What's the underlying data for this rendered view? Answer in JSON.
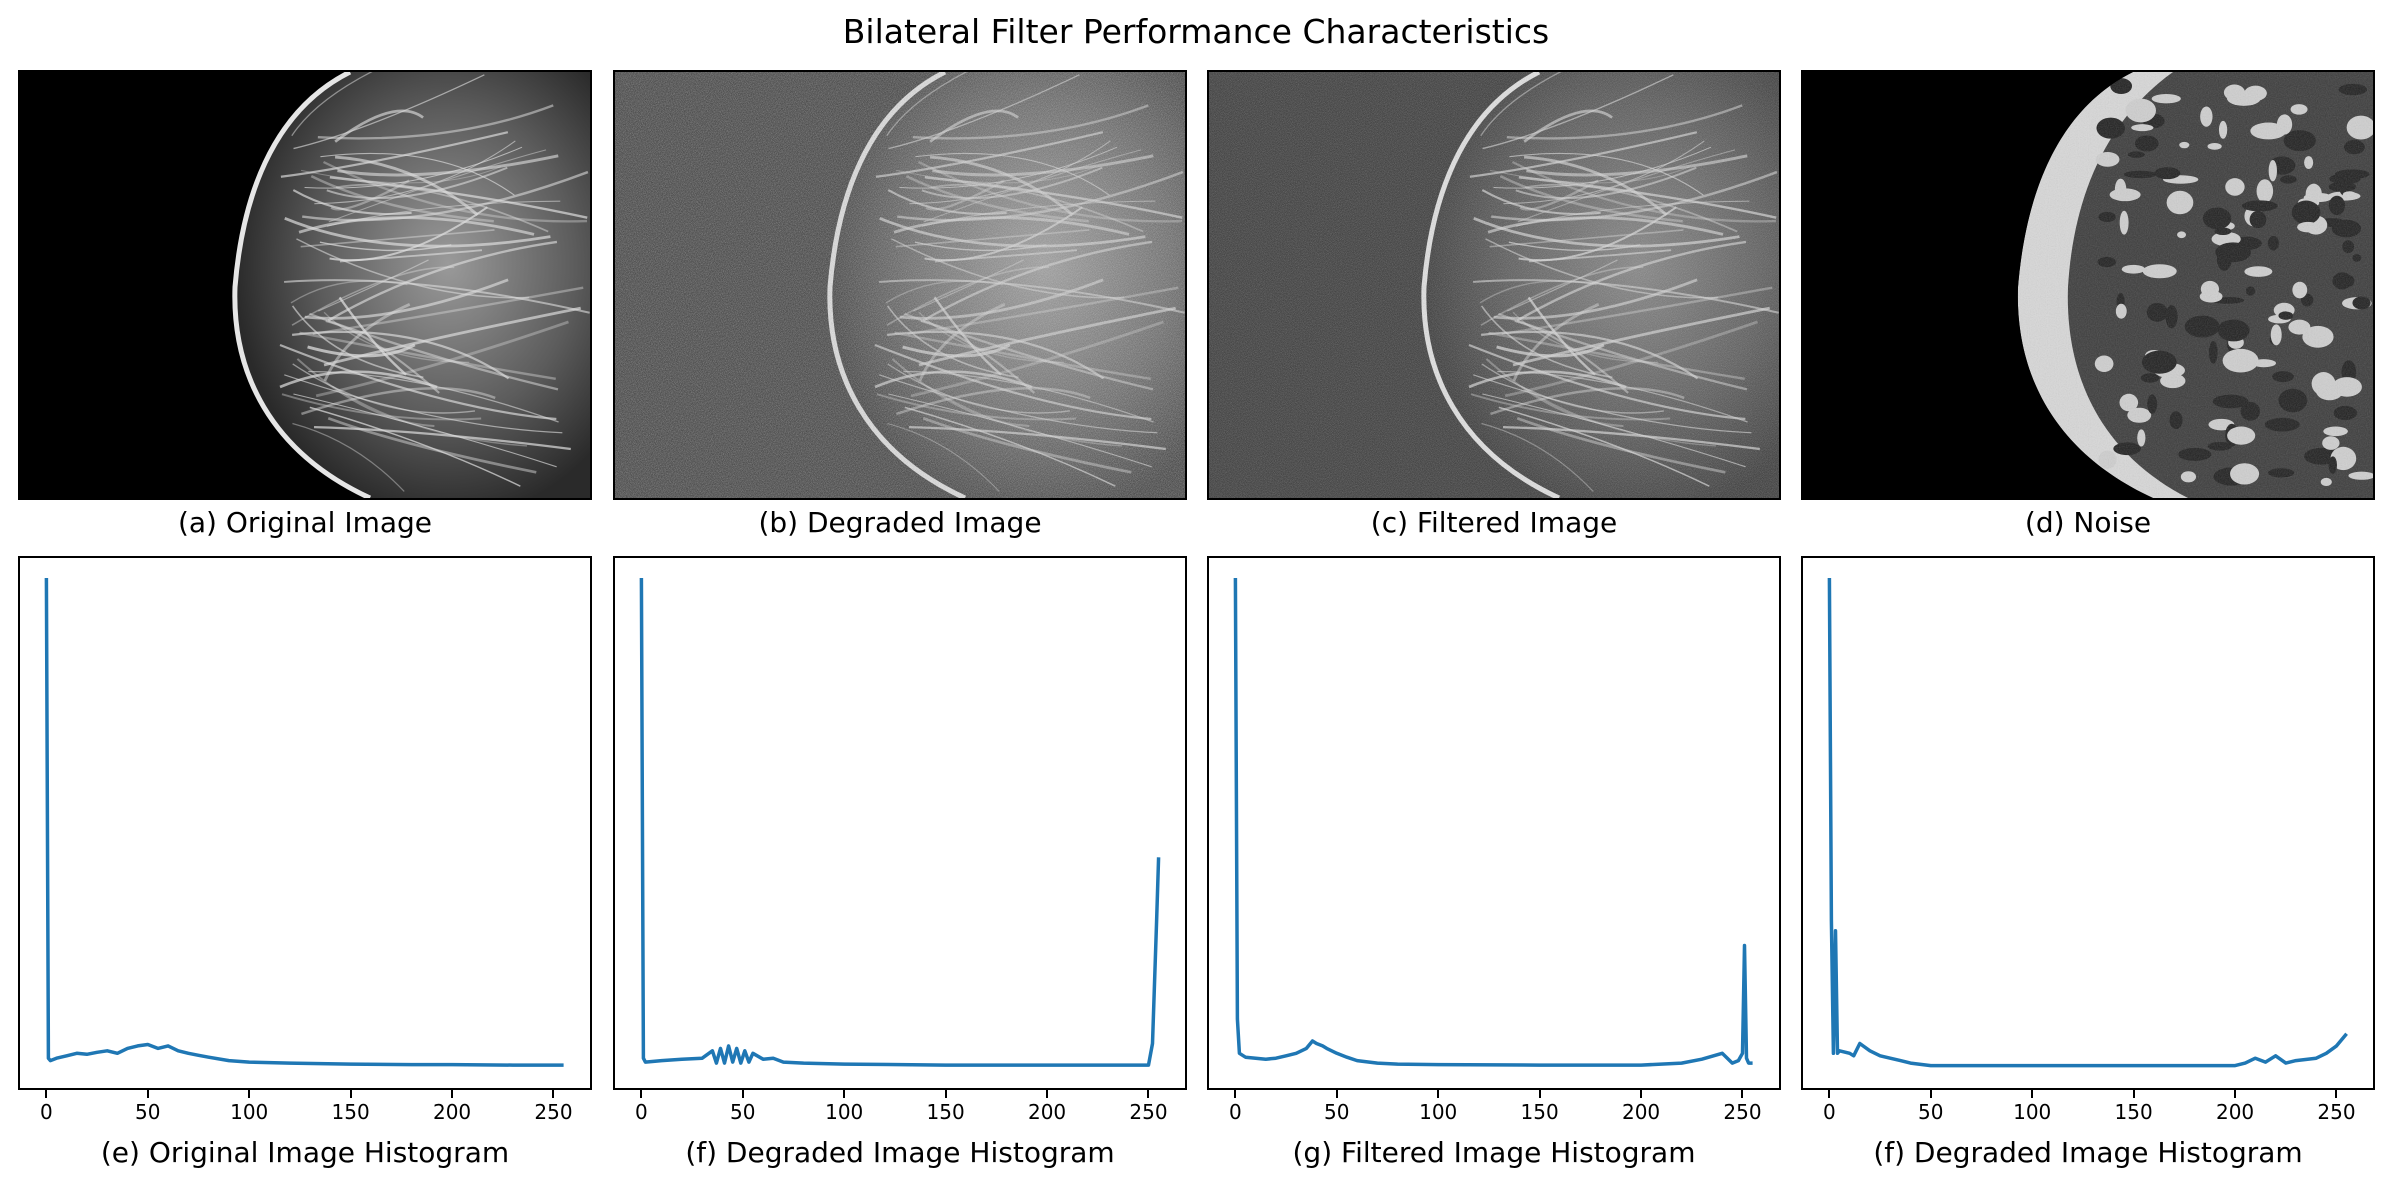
{
  "figure_title": "Bilateral Filter Performance Characteristics",
  "image_panels": [
    {
      "caption": "(a) Original Image",
      "kind": "original"
    },
    {
      "caption": "(b) Degraded Image",
      "kind": "degraded"
    },
    {
      "caption": "(c) Filtered Image",
      "kind": "filtered"
    },
    {
      "caption": "(d) Noise",
      "kind": "noise"
    }
  ],
  "colors": {
    "line": "#1f77b4",
    "axis": "#000000"
  },
  "chart_data": [
    {
      "type": "line",
      "title": "(e) Original Image Histogram",
      "xlabel": "",
      "ylabel": "",
      "xlim": [
        -13,
        268
      ],
      "ylim": [
        0,
        1
      ],
      "xticks": [
        0,
        50,
        100,
        150,
        200,
        250
      ],
      "yticks": [],
      "series": [
        {
          "x": [
            0,
            1,
            2,
            5,
            10,
            15,
            20,
            25,
            30,
            35,
            40,
            45,
            50,
            55,
            60,
            65,
            70,
            75,
            80,
            90,
            100,
            120,
            150,
            180,
            200,
            230,
            255
          ],
          "y": [
            1.0,
            0.02,
            0.015,
            0.02,
            0.025,
            0.03,
            0.028,
            0.032,
            0.035,
            0.03,
            0.04,
            0.045,
            0.048,
            0.04,
            0.045,
            0.035,
            0.03,
            0.026,
            0.022,
            0.015,
            0.012,
            0.01,
            0.008,
            0.007,
            0.007,
            0.006,
            0.006
          ]
        }
      ]
    },
    {
      "type": "line",
      "title": "(f) Degraded Image Histogram",
      "xlabel": "",
      "ylabel": "",
      "xlim": [
        -13,
        268
      ],
      "ylim": [
        0,
        1
      ],
      "xticks": [
        0,
        50,
        100,
        150,
        200,
        250
      ],
      "yticks": [],
      "series": [
        {
          "x": [
            0,
            1,
            2,
            10,
            20,
            30,
            35,
            37,
            39,
            41,
            43,
            45,
            47,
            49,
            51,
            53,
            55,
            60,
            65,
            70,
            80,
            100,
            150,
            200,
            250,
            252,
            254,
            255
          ],
          "y": [
            1.0,
            0.02,
            0.012,
            0.015,
            0.018,
            0.02,
            0.035,
            0.01,
            0.04,
            0.01,
            0.045,
            0.012,
            0.04,
            0.01,
            0.035,
            0.012,
            0.03,
            0.018,
            0.02,
            0.012,
            0.01,
            0.008,
            0.006,
            0.006,
            0.006,
            0.05,
            0.3,
            0.43
          ]
        }
      ]
    },
    {
      "type": "line",
      "title": "(g) Filtered Image Histogram",
      "xlabel": "",
      "ylabel": "",
      "xlim": [
        -13,
        268
      ],
      "ylim": [
        0,
        1
      ],
      "xticks": [
        0,
        50,
        100,
        150,
        200,
        250
      ],
      "yticks": [],
      "series": [
        {
          "x": [
            0,
            1,
            2,
            5,
            10,
            15,
            20,
            25,
            30,
            35,
            38,
            40,
            43,
            45,
            50,
            55,
            60,
            70,
            80,
            100,
            150,
            200,
            220,
            230,
            240,
            245,
            248,
            250,
            251,
            252,
            253,
            255
          ],
          "y": [
            1.0,
            0.1,
            0.03,
            0.022,
            0.02,
            0.018,
            0.02,
            0.025,
            0.03,
            0.04,
            0.055,
            0.05,
            0.045,
            0.04,
            0.03,
            0.022,
            0.015,
            0.01,
            0.008,
            0.007,
            0.006,
            0.006,
            0.01,
            0.018,
            0.03,
            0.01,
            0.015,
            0.03,
            0.25,
            0.02,
            0.01,
            0.01
          ]
        }
      ]
    },
    {
      "type": "line",
      "title": "(f) Degraded Image Histogram",
      "xlabel": "",
      "ylabel": "",
      "xlim": [
        -13,
        268
      ],
      "ylim": [
        0,
        1
      ],
      "xticks": [
        0,
        50,
        100,
        150,
        200,
        250
      ],
      "yticks": [],
      "series": [
        {
          "x": [
            0,
            1,
            2,
            3,
            4,
            5,
            10,
            12,
            15,
            20,
            25,
            30,
            35,
            40,
            50,
            100,
            150,
            200,
            205,
            210,
            215,
            220,
            225,
            230,
            240,
            245,
            250,
            255
          ],
          "y": [
            1.0,
            0.3,
            0.03,
            0.28,
            0.03,
            0.035,
            0.03,
            0.025,
            0.05,
            0.035,
            0.025,
            0.02,
            0.015,
            0.01,
            0.005,
            0.005,
            0.005,
            0.005,
            0.01,
            0.02,
            0.012,
            0.025,
            0.01,
            0.015,
            0.02,
            0.03,
            0.045,
            0.07
          ]
        }
      ]
    }
  ]
}
